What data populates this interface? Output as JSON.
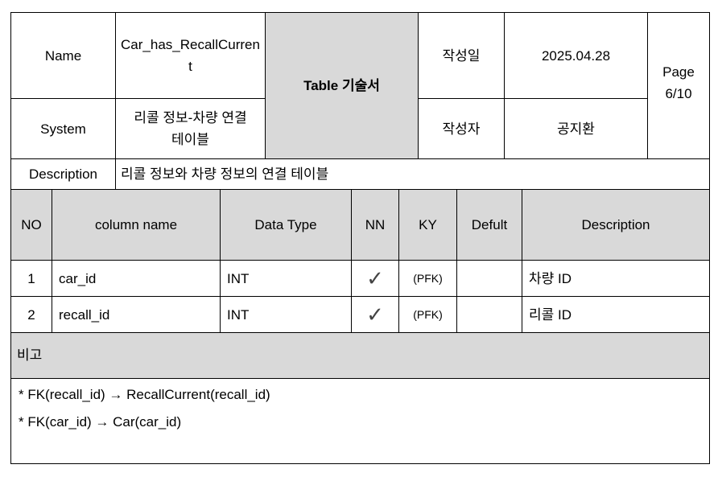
{
  "header": {
    "name_label": "Name",
    "name_value": "Car_has_RecallCurrent",
    "title": "Table 기술서",
    "date_label": "작성일",
    "date_value": "2025.04.28",
    "page_label": "Page",
    "page_value": "6/10",
    "system_label": "System",
    "system_value": "리콜 정보-차량 연결 테이블",
    "author_label": "작성자",
    "author_value": "공지환",
    "description_label": "Description",
    "description_value": "리콜 정보와 차량 정보의 연결 테이블"
  },
  "columns": {
    "no": "NO",
    "column_name": "column name",
    "data_type": "Data Type",
    "nn": "NN",
    "ky": "KY",
    "default": "Defult",
    "description": "Description"
  },
  "rows": [
    {
      "no": "1",
      "column_name": "car_id",
      "data_type": "INT",
      "nn": "✓",
      "ky": "(PFK)",
      "default": "",
      "description": "차량 ID"
    },
    {
      "no": "2",
      "column_name": "recall_id",
      "data_type": "INT",
      "nn": "✓",
      "ky": "(PFK)",
      "default": "",
      "description": "리콜 ID"
    }
  ],
  "remarks": {
    "label": "비고",
    "lines": [
      "* FK(recall_id) → RecallCurrent(recall_id)",
      "* FK(car_id) → Car(car_id)"
    ]
  }
}
